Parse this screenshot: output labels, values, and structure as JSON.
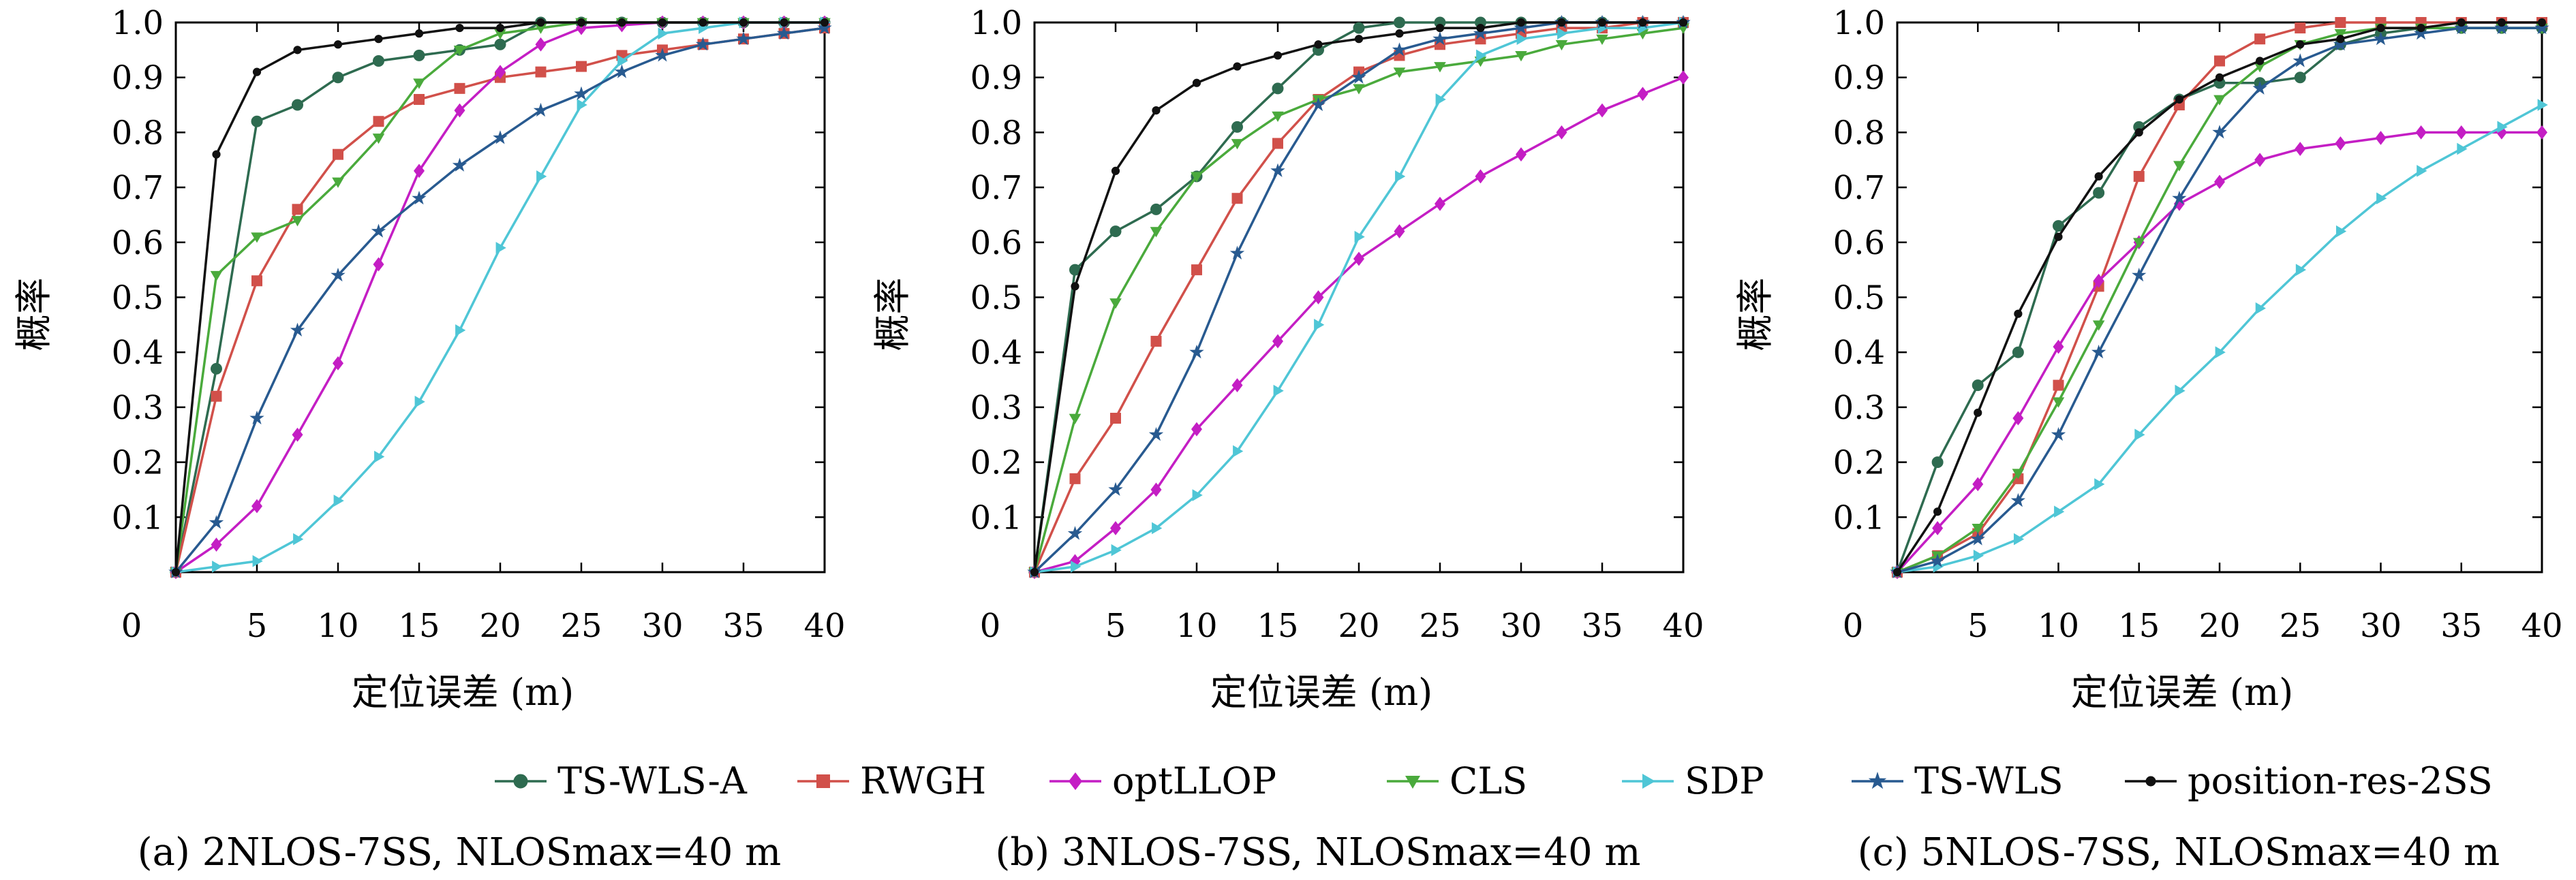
{
  "legend": [
    {
      "name": "TS-WLS-A",
      "color": "#2e6b50",
      "marker": "circle"
    },
    {
      "name": "RWGH",
      "color": "#d1504a",
      "marker": "square"
    },
    {
      "name": "optLLOP",
      "color": "#c41ec4",
      "marker": "diamond"
    },
    {
      "name": "CLS",
      "color": "#4aaa3c",
      "marker": "triangle-down"
    },
    {
      "name": "SDP",
      "color": "#4fc6d6",
      "marker": "triangle-right"
    },
    {
      "name": "TS-WLS",
      "color": "#285a90",
      "marker": "star"
    },
    {
      "name": "position-res-2SS",
      "color": "#111111",
      "marker": "circle-small"
    }
  ],
  "chart_data": [
    {
      "type": "line",
      "caption": "(a) 2NLOS-7SS, NLOSmax=40 m",
      "xlabel": "定位误差 (m)",
      "ylabel": "概率",
      "xlim": [
        0,
        40
      ],
      "ylim": [
        0,
        1.0
      ],
      "x_origin_label": "0",
      "xticks": [
        5,
        10,
        15,
        20,
        25,
        30,
        35,
        40
      ],
      "yticks": [
        "0.1",
        "0.2",
        "0.3",
        "0.4",
        "0.5",
        "0.6",
        "0.7",
        "0.8",
        "0.9",
        "1.0"
      ],
      "grid": false,
      "x": [
        0,
        2.5,
        5,
        7.5,
        10,
        12.5,
        15,
        17.5,
        20,
        22.5,
        25,
        27.5,
        30,
        32.5,
        35,
        37.5,
        40
      ],
      "series": [
        {
          "name": "TS-WLS-A",
          "values": [
            0,
            0.37,
            0.82,
            0.85,
            0.9,
            0.93,
            0.94,
            0.95,
            0.96,
            1.0,
            1.0,
            1.0,
            1.0,
            1.0,
            1.0,
            1.0,
            1.0
          ]
        },
        {
          "name": "RWGH",
          "values": [
            0,
            0.32,
            0.53,
            0.66,
            0.76,
            0.82,
            0.86,
            0.88,
            0.9,
            0.91,
            0.92,
            0.94,
            0.95,
            0.96,
            0.97,
            0.98,
            0.99
          ]
        },
        {
          "name": "optLLOP",
          "values": [
            0,
            0.05,
            0.12,
            0.25,
            0.38,
            0.56,
            0.73,
            0.84,
            0.91,
            0.96,
            0.99,
            0.995,
            1.0,
            1.0,
            1.0,
            1.0,
            1.0
          ]
        },
        {
          "name": "CLS",
          "values": [
            0,
            0.54,
            0.61,
            0.64,
            0.71,
            0.79,
            0.89,
            0.95,
            0.98,
            0.99,
            1.0,
            1.0,
            1.0,
            1.0,
            1.0,
            1.0,
            1.0
          ]
        },
        {
          "name": "SDP",
          "values": [
            0,
            0.01,
            0.02,
            0.06,
            0.13,
            0.21,
            0.31,
            0.44,
            0.59,
            0.72,
            0.85,
            0.93,
            0.98,
            0.99,
            1.0,
            1.0,
            1.0
          ]
        },
        {
          "name": "TS-WLS",
          "values": [
            0,
            0.09,
            0.28,
            0.44,
            0.54,
            0.62,
            0.68,
            0.74,
            0.79,
            0.84,
            0.87,
            0.91,
            0.94,
            0.96,
            0.97,
            0.98,
            0.99
          ]
        },
        {
          "name": "position-res-2SS",
          "values": [
            0,
            0.76,
            0.91,
            0.95,
            0.96,
            0.97,
            0.98,
            0.99,
            0.99,
            1.0,
            1.0,
            1.0,
            1.0,
            1.0,
            1.0,
            1.0,
            1.0
          ]
        }
      ]
    },
    {
      "type": "line",
      "caption": "(b) 3NLOS-7SS, NLOSmax=40 m",
      "xlabel": "定位误差 (m)",
      "ylabel": "概率",
      "xlim": [
        0,
        40
      ],
      "ylim": [
        0,
        1.0
      ],
      "x_origin_label": "0",
      "xticks": [
        5,
        10,
        15,
        20,
        25,
        30,
        35,
        40
      ],
      "yticks": [
        "0.1",
        "0.2",
        "0.3",
        "0.4",
        "0.5",
        "0.6",
        "0.7",
        "0.8",
        "0.9",
        "1.0"
      ],
      "grid": false,
      "x": [
        0,
        2.5,
        5,
        7.5,
        10,
        12.5,
        15,
        17.5,
        20,
        22.5,
        25,
        27.5,
        30,
        32.5,
        35,
        37.5,
        40
      ],
      "series": [
        {
          "name": "TS-WLS-A",
          "values": [
            0,
            0.55,
            0.62,
            0.66,
            0.72,
            0.81,
            0.88,
            0.95,
            0.99,
            1.0,
            1.0,
            1.0,
            1.0,
            1.0,
            1.0,
            1.0,
            1.0
          ]
        },
        {
          "name": "RWGH",
          "values": [
            0,
            0.17,
            0.28,
            0.42,
            0.55,
            0.68,
            0.78,
            0.86,
            0.91,
            0.94,
            0.96,
            0.97,
            0.98,
            0.99,
            0.99,
            1.0,
            1.0
          ]
        },
        {
          "name": "optLLOP",
          "values": [
            0,
            0.02,
            0.08,
            0.15,
            0.26,
            0.34,
            0.42,
            0.5,
            0.57,
            0.62,
            0.67,
            0.72,
            0.76,
            0.8,
            0.84,
            0.87,
            0.9
          ]
        },
        {
          "name": "CLS",
          "values": [
            0,
            0.28,
            0.49,
            0.62,
            0.72,
            0.78,
            0.83,
            0.86,
            0.88,
            0.91,
            0.92,
            0.93,
            0.94,
            0.96,
            0.97,
            0.98,
            0.99
          ]
        },
        {
          "name": "SDP",
          "values": [
            0,
            0.01,
            0.04,
            0.08,
            0.14,
            0.22,
            0.33,
            0.45,
            0.61,
            0.72,
            0.86,
            0.94,
            0.97,
            0.98,
            0.99,
            0.99,
            1.0
          ]
        },
        {
          "name": "TS-WLS",
          "values": [
            0,
            0.07,
            0.15,
            0.25,
            0.4,
            0.58,
            0.73,
            0.85,
            0.9,
            0.95,
            0.97,
            0.98,
            0.99,
            1.0,
            1.0,
            1.0,
            1.0
          ]
        },
        {
          "name": "position-res-2SS",
          "values": [
            0,
            0.52,
            0.73,
            0.84,
            0.89,
            0.92,
            0.94,
            0.96,
            0.97,
            0.98,
            0.99,
            0.99,
            1.0,
            1.0,
            1.0,
            1.0,
            1.0
          ]
        }
      ]
    },
    {
      "type": "line",
      "caption": "(c) 5NLOS-7SS, NLOSmax=40 m",
      "xlabel": "定位误差 (m)",
      "ylabel": "概率",
      "xlim": [
        0,
        40
      ],
      "ylim": [
        0,
        1.0
      ],
      "x_origin_label": "0",
      "xticks": [
        5,
        10,
        15,
        20,
        25,
        30,
        35,
        40
      ],
      "yticks": [
        "0.1",
        "0.2",
        "0.3",
        "0.4",
        "0.5",
        "0.6",
        "0.7",
        "0.8",
        "0.9",
        "1.0"
      ],
      "grid": false,
      "x": [
        0,
        2.5,
        5,
        7.5,
        10,
        12.5,
        15,
        17.5,
        20,
        22.5,
        25,
        27.5,
        30,
        32.5,
        35,
        37.5,
        40
      ],
      "series": [
        {
          "name": "TS-WLS-A",
          "values": [
            0,
            0.2,
            0.34,
            0.4,
            0.63,
            0.69,
            0.81,
            0.86,
            0.89,
            0.89,
            0.9,
            0.96,
            0.98,
            0.99,
            0.99,
            0.99,
            0.99
          ]
        },
        {
          "name": "RWGH",
          "values": [
            0,
            0.03,
            0.07,
            0.17,
            0.34,
            0.52,
            0.72,
            0.85,
            0.93,
            0.97,
            0.99,
            1.0,
            1.0,
            1.0,
            1.0,
            1.0,
            1.0
          ]
        },
        {
          "name": "optLLOP",
          "values": [
            0,
            0.08,
            0.16,
            0.28,
            0.41,
            0.53,
            0.6,
            0.67,
            0.71,
            0.75,
            0.77,
            0.78,
            0.79,
            0.8,
            0.8,
            0.8,
            0.8
          ]
        },
        {
          "name": "CLS",
          "values": [
            0,
            0.03,
            0.08,
            0.18,
            0.31,
            0.45,
            0.6,
            0.74,
            0.86,
            0.92,
            0.96,
            0.98,
            0.99,
            0.99,
            0.99,
            0.99,
            0.99
          ]
        },
        {
          "name": "SDP",
          "values": [
            0,
            0.01,
            0.03,
            0.06,
            0.11,
            0.16,
            0.25,
            0.33,
            0.4,
            0.48,
            0.55,
            0.62,
            0.68,
            0.73,
            0.77,
            0.81,
            0.85
          ]
        },
        {
          "name": "TS-WLS",
          "values": [
            0,
            0.02,
            0.06,
            0.13,
            0.25,
            0.4,
            0.54,
            0.68,
            0.8,
            0.88,
            0.93,
            0.96,
            0.97,
            0.98,
            0.99,
            0.99,
            0.99
          ]
        },
        {
          "name": "position-res-2SS",
          "values": [
            0,
            0.11,
            0.29,
            0.47,
            0.61,
            0.72,
            0.8,
            0.86,
            0.9,
            0.93,
            0.96,
            0.97,
            0.99,
            0.99,
            1.0,
            1.0,
            1.0
          ]
        }
      ]
    }
  ]
}
